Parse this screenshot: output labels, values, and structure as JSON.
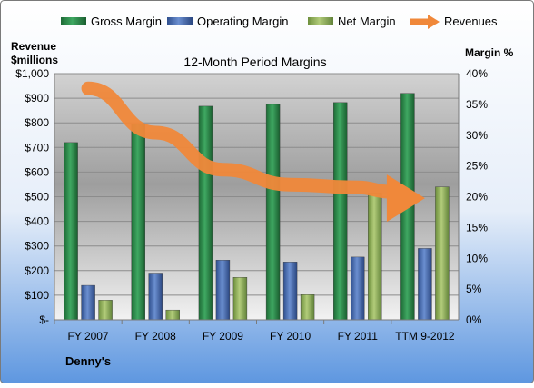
{
  "chart_data": {
    "type": "bar",
    "title": "12-Month Period Margins",
    "company": "Denny's",
    "left_axis_title_line1": "Revenue",
    "left_axis_title_line2": "$millions",
    "right_axis_title": "Margin %",
    "categories": [
      "FY 2007",
      "FY 2008",
      "FY 2009",
      "FY 2010",
      "FY 2011",
      "TTM 9-2012"
    ],
    "left_axis": {
      "min": 0,
      "max": 1000,
      "step": 100,
      "tick_labels": [
        "$-",
        "$100",
        "$200",
        "$300",
        "$400",
        "$500",
        "$600",
        "$700",
        "$800",
        "$900",
        "$1,000"
      ]
    },
    "right_axis": {
      "min": 0,
      "max": 40,
      "step": 5,
      "unit": "%",
      "tick_labels": [
        "0%",
        "5%",
        "10%",
        "15%",
        "20%",
        "25%",
        "30%",
        "35%",
        "40%"
      ]
    },
    "grid": true,
    "legend_position": "top",
    "series": [
      {
        "name": "Gross Margin",
        "kind": "bar",
        "axis": "right",
        "color": "#2e8a4a",
        "values": [
          28.8,
          31.8,
          34.7,
          35.0,
          35.3,
          36.8
        ]
      },
      {
        "name": "Operating Margin",
        "kind": "bar",
        "axis": "right",
        "color": "#4a6fb0",
        "values": [
          5.6,
          7.6,
          9.7,
          9.4,
          10.2,
          11.6
        ]
      },
      {
        "name": "Net Margin",
        "kind": "bar",
        "axis": "right",
        "color": "#8eb05a",
        "values": [
          3.2,
          1.6,
          6.9,
          4.1,
          20.6,
          21.6
        ]
      },
      {
        "name": "Revenues",
        "kind": "line",
        "axis": "left",
        "color": "#f0883a",
        "values": [
          940,
          760,
          610,
          549,
          538,
          505
        ]
      }
    ]
  }
}
